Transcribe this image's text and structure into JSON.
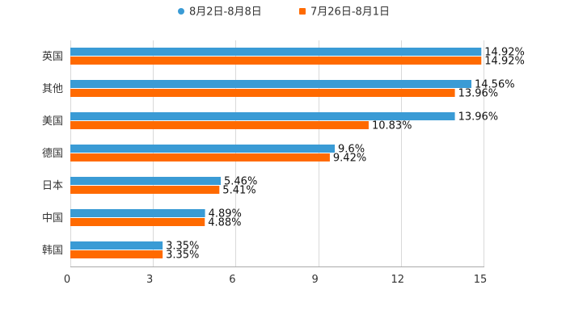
{
  "chart_data": {
    "type": "bar",
    "orientation": "horizontal",
    "title": "",
    "xlabel": "",
    "ylabel": "",
    "categories": [
      "英国",
      "其他",
      "美国",
      "德国",
      "日本",
      "中国",
      "韩国"
    ],
    "series": [
      {
        "name": "8月2日-8月8日",
        "color": "#3a9bd5",
        "values": [
          14.92,
          14.56,
          13.96,
          9.6,
          5.46,
          4.89,
          3.35
        ],
        "labels": [
          "14.92%",
          "14.56%",
          "13.96%",
          "9.6%",
          "5.46%",
          "4.89%",
          "3.35%"
        ]
      },
      {
        "name": "7月26日-8月1日",
        "color": "#ff6a00",
        "values": [
          14.92,
          13.96,
          10.83,
          9.42,
          5.41,
          4.88,
          3.35
        ],
        "labels": [
          "14.92%",
          "13.96%",
          "10.83%",
          "9.42%",
          "5.41%",
          "4.88%",
          "3.35%"
        ]
      }
    ],
    "xlim": [
      0,
      15
    ],
    "xticks": [
      0,
      3,
      6,
      9,
      12,
      15
    ],
    "xtick_labels": [
      "0",
      "3",
      "6",
      "9",
      "12",
      "15"
    ],
    "grid": "vertical",
    "legend_position": "top-center"
  }
}
